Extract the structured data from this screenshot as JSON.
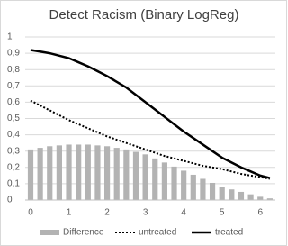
{
  "chart_data": {
    "type": "line",
    "title": "Detect Racism (Binary LogReg)",
    "x": [
      0,
      0.25,
      0.5,
      0.75,
      1,
      1.25,
      1.5,
      1.75,
      2,
      2.25,
      2.5,
      2.75,
      3,
      3.25,
      3.5,
      3.75,
      4,
      4.25,
      4.5,
      4.75,
      5,
      5.25,
      5.5,
      5.75,
      6,
      6.25
    ],
    "series": [
      {
        "name": "Difference",
        "type": "bar",
        "color": "#b3b3b3",
        "values": [
          0.31,
          0.32,
          0.33,
          0.335,
          0.34,
          0.34,
          0.34,
          0.335,
          0.33,
          0.32,
          0.31,
          0.295,
          0.28,
          0.255,
          0.23,
          0.205,
          0.18,
          0.155,
          0.13,
          0.105,
          0.08,
          0.065,
          0.05,
          0.035,
          0.02,
          0.01
        ]
      },
      {
        "name": "untreated",
        "type": "line",
        "style": "dotted",
        "color": "#000000",
        "values": [
          0.61,
          0.58,
          0.55,
          0.52,
          0.49,
          0.465,
          0.44,
          0.415,
          0.39,
          0.37,
          0.35,
          0.33,
          0.31,
          0.29,
          0.27,
          0.255,
          0.24,
          0.225,
          0.21,
          0.2,
          0.19,
          0.175,
          0.16,
          0.15,
          0.14,
          0.13
        ]
      },
      {
        "name": "treated",
        "type": "line",
        "style": "solid",
        "color": "#000000",
        "values": [
          0.92,
          0.91,
          0.9,
          0.885,
          0.87,
          0.845,
          0.82,
          0.79,
          0.76,
          0.725,
          0.69,
          0.645,
          0.6,
          0.555,
          0.51,
          0.465,
          0.42,
          0.38,
          0.34,
          0.3,
          0.26,
          0.23,
          0.2,
          0.175,
          0.15,
          0.135
        ]
      }
    ],
    "xlim": [
      0,
      6.3
    ],
    "xticks": [
      0,
      1,
      2,
      3,
      4,
      5,
      6
    ],
    "ylim": [
      0,
      1
    ],
    "yticks": [
      0,
      {
        "value": 0.1,
        "label": "0,1"
      },
      {
        "value": 0.2,
        "label": "0,2"
      },
      {
        "value": 0.3,
        "label": "0,3"
      },
      {
        "value": 0.4,
        "label": "0,4"
      },
      {
        "value": 0.5,
        "label": "0,5"
      },
      {
        "value": 0.6,
        "label": "0,6"
      },
      {
        "value": 0.7,
        "label": "0,7"
      },
      {
        "value": 0.8,
        "label": "0,8"
      },
      {
        "value": 0.9,
        "label": "0,9"
      },
      1
    ],
    "grid": true,
    "legend": "bottom"
  }
}
